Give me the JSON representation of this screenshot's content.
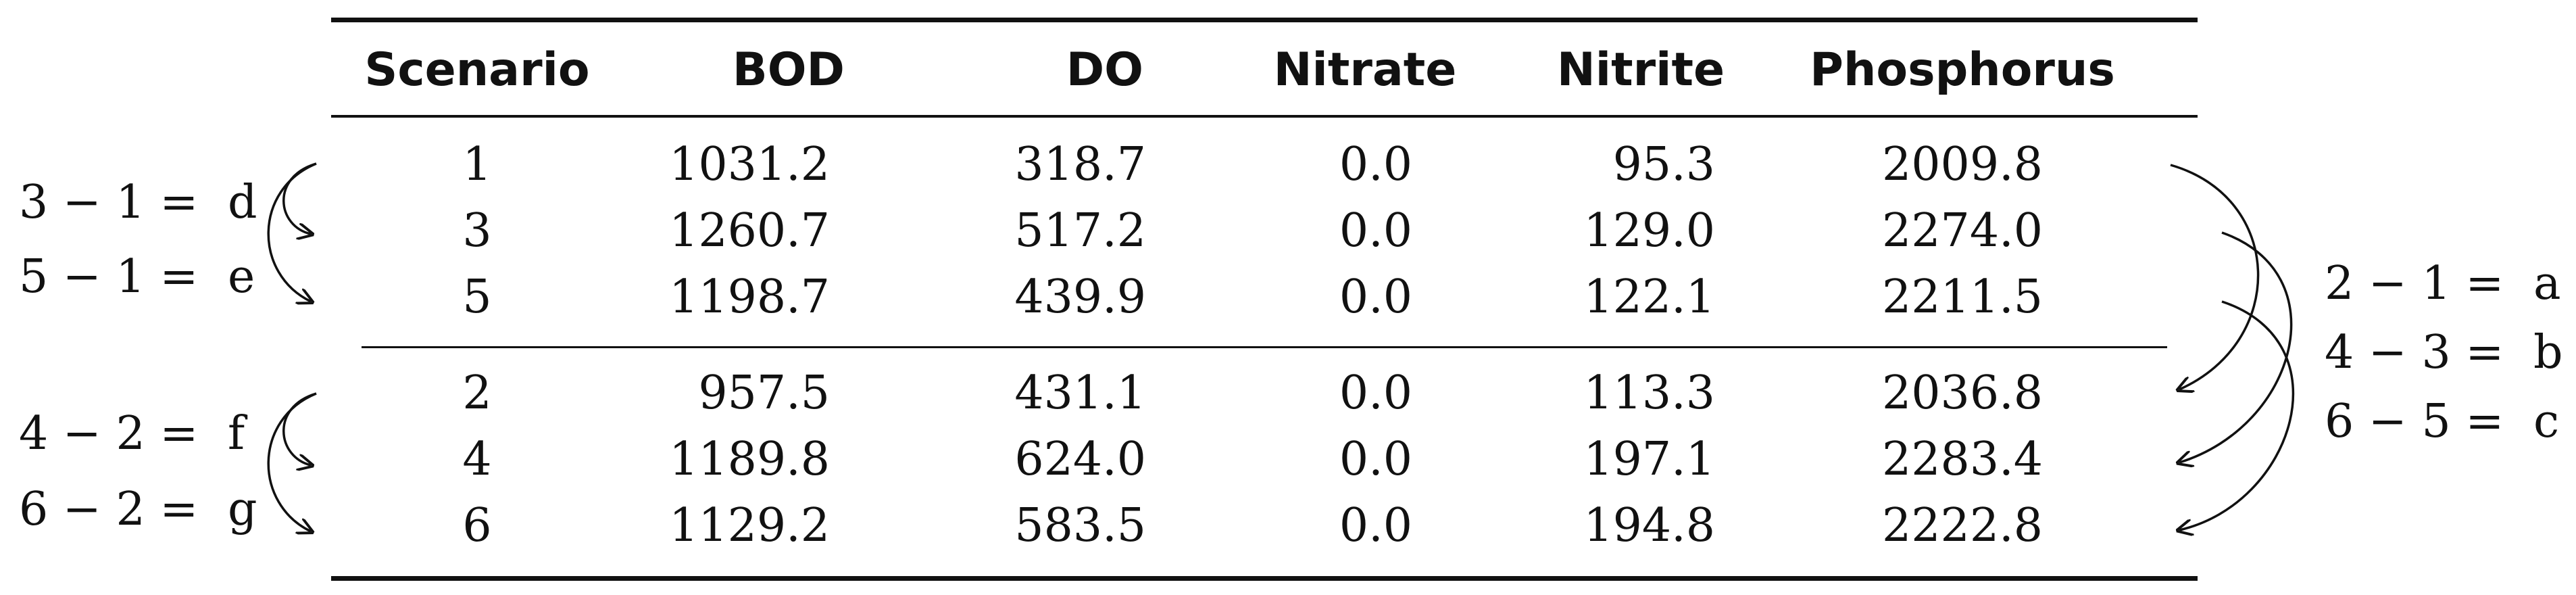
{
  "table": {
    "headers": [
      "Scenario",
      "BOD",
      "DO",
      "Nitrate",
      "Nitrite",
      "Phosphorus"
    ],
    "group1": [
      [
        "1",
        "1031.2",
        "318.7",
        "0.0",
        "95.3",
        "2009.8"
      ],
      [
        "3",
        "1260.7",
        "517.2",
        "0.0",
        "129.0",
        "2274.0"
      ],
      [
        "5",
        "1198.7",
        "439.9",
        "0.0",
        "122.1",
        "2211.5"
      ]
    ],
    "group2": [
      [
        "2",
        "957.5",
        "431.1",
        "0.0",
        "113.3",
        "2036.8"
      ],
      [
        "4",
        "1189.8",
        "624.0",
        "0.0",
        "197.1",
        "2283.4"
      ],
      [
        "6",
        "1129.2",
        "583.5",
        "0.0",
        "194.8",
        "2222.8"
      ]
    ]
  },
  "left_annotations": [
    {
      "expr": "3 − 1 =",
      "label": "d"
    },
    {
      "expr": "5 − 1 =",
      "label": "e"
    },
    {
      "expr": "4 − 2 =",
      "label": "f"
    },
    {
      "expr": "6 − 2 =",
      "label": "g"
    }
  ],
  "right_annotations": [
    {
      "expr": "2 − 1 =",
      "label": "a"
    },
    {
      "expr": "4 − 3 =",
      "label": "b"
    },
    {
      "expr": "6 − 5 =",
      "label": "c"
    }
  ]
}
